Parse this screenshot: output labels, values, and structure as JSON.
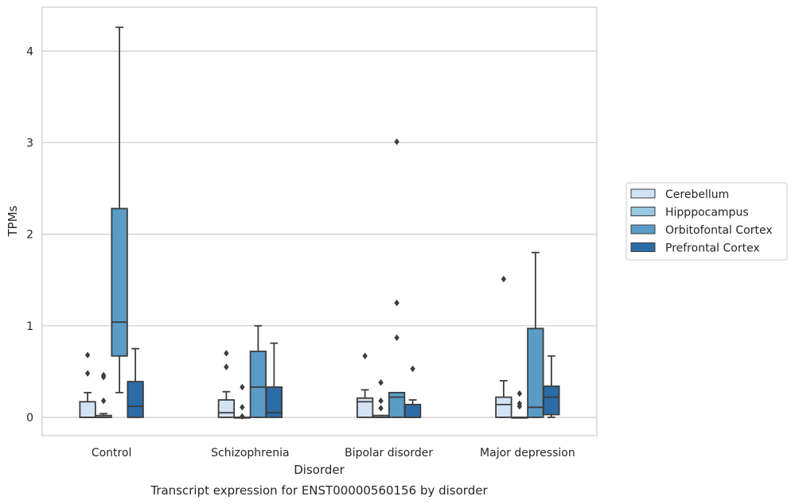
{
  "caption": "Transcript expression for ENST00000560156 by disorder",
  "chart_data": {
    "type": "box",
    "xlabel": "Disorder",
    "ylabel": "TPMs",
    "ylim": [
      -0.2,
      4.48
    ],
    "yticks": [
      0,
      1,
      2,
      3,
      4
    ],
    "grid": "horizontal",
    "legend_position": "right",
    "categories": [
      "Control",
      "Schizophrenia",
      "Bipolar disorder",
      "Major depression"
    ],
    "series": [
      {
        "name": "Cerebellum",
        "color": "#d3e3f3",
        "boxes": [
          {
            "q1": 0.0,
            "median": 0.0,
            "q3": 0.17,
            "whisker_low": 0.0,
            "whisker_high": 0.27,
            "outliers": [
              0.68,
              0.48
            ]
          },
          {
            "q1": 0.0,
            "median": 0.05,
            "q3": 0.19,
            "whisker_low": 0.0,
            "whisker_high": 0.28,
            "outliers": [
              0.7,
              0.55
            ]
          },
          {
            "q1": 0.0,
            "median": 0.17,
            "q3": 0.21,
            "whisker_low": 0.0,
            "whisker_high": 0.3,
            "outliers": [
              0.67
            ]
          },
          {
            "q1": 0.0,
            "median": 0.14,
            "q3": 0.22,
            "whisker_low": 0.0,
            "whisker_high": 0.4,
            "outliers": [
              1.51
            ]
          }
        ]
      },
      {
        "name": "Hipppocampus",
        "color": "#9ac8e0",
        "boxes": [
          {
            "q1": 0.0,
            "median": 0.0,
            "q3": 0.02,
            "whisker_low": 0.0,
            "whisker_high": 0.04,
            "outliers": [
              0.18,
              0.44,
              0.46
            ]
          },
          {
            "q1": 0.0,
            "median": 0.0,
            "q3": 0.0,
            "whisker_low": 0.0,
            "whisker_high": 0.0,
            "outliers": [
              0.33,
              0.11,
              0.01
            ]
          },
          {
            "q1": 0.0,
            "median": 0.0,
            "q3": 0.02,
            "whisker_low": 0.0,
            "whisker_high": 0.02,
            "outliers": [
              0.38,
              0.18,
              0.1
            ]
          },
          {
            "q1": 0.0,
            "median": 0.0,
            "q3": 0.0,
            "whisker_low": 0.0,
            "whisker_high": 0.0,
            "outliers": [
              0.26,
              0.15,
              0.12
            ]
          }
        ]
      },
      {
        "name": "Orbitofontal Cortex",
        "color": "#5a9bc8",
        "boxes": [
          {
            "q1": 0.67,
            "median": 1.04,
            "q3": 2.28,
            "whisker_low": 0.27,
            "whisker_high": 4.26,
            "outliers": []
          },
          {
            "q1": 0.0,
            "median": 0.33,
            "q3": 0.72,
            "whisker_low": 0.0,
            "whisker_high": 1.0,
            "outliers": []
          },
          {
            "q1": 0.0,
            "median": 0.22,
            "q3": 0.27,
            "whisker_low": 0.0,
            "whisker_high": 0.27,
            "outliers": [
              3.01,
              1.25,
              0.87
            ]
          },
          {
            "q1": 0.0,
            "median": 0.11,
            "q3": 0.97,
            "whisker_low": 0.0,
            "whisker_high": 1.8,
            "outliers": []
          }
        ]
      },
      {
        "name": "Prefrontal Cortex",
        "color": "#2b6ca8",
        "boxes": [
          {
            "q1": 0.0,
            "median": 0.12,
            "q3": 0.39,
            "whisker_low": 0.0,
            "whisker_high": 0.75,
            "outliers": []
          },
          {
            "q1": 0.0,
            "median": 0.05,
            "q3": 0.33,
            "whisker_low": 0.0,
            "whisker_high": 0.81,
            "outliers": []
          },
          {
            "q1": 0.0,
            "median": 0.0,
            "q3": 0.14,
            "whisker_low": 0.0,
            "whisker_high": 0.19,
            "outliers": [
              0.53
            ]
          },
          {
            "q1": 0.03,
            "median": 0.22,
            "q3": 0.34,
            "whisker_low": 0.0,
            "whisker_high": 0.67,
            "outliers": []
          }
        ]
      }
    ]
  }
}
